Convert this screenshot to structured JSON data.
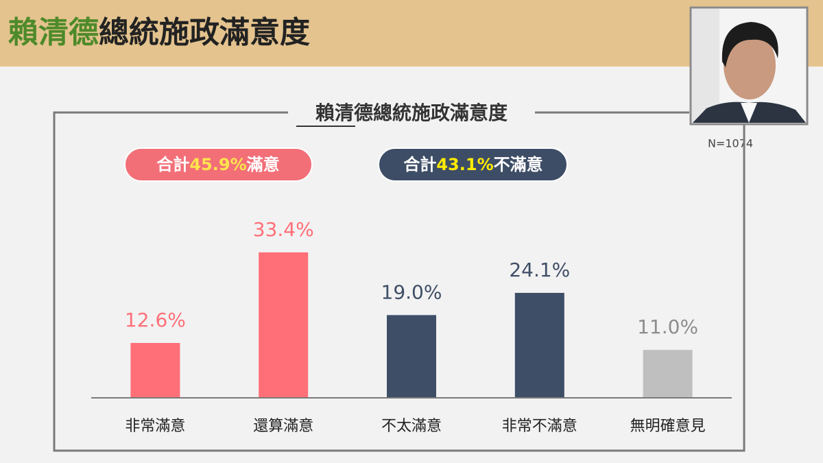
{
  "header": {
    "title_highlight": "賴清德",
    "title_rest": "總統施政滿意度"
  },
  "sample_size": "N=1074",
  "badges": [
    {
      "prefix": "合計",
      "value": "45.9%",
      "suffix": "滿意"
    },
    {
      "prefix": "合計",
      "value": "43.1%",
      "suffix": "不滿意"
    }
  ],
  "chart_data": {
    "type": "bar",
    "title": "賴清德總統施政滿意度",
    "categories": [
      "非常滿意",
      "還算滿意",
      "不太滿意",
      "非常不滿意",
      "無明確意見"
    ],
    "values": [
      12.6,
      33.4,
      19.0,
      24.1,
      11.0
    ],
    "value_labels": [
      "12.6%",
      "33.4%",
      "19.0%",
      "24.1%",
      "11.0%"
    ],
    "colors": [
      "#ff6f78",
      "#ff6f78",
      "#3f4e67",
      "#3f4e67",
      "#bfbfbf"
    ],
    "ylim": [
      0,
      40
    ]
  }
}
